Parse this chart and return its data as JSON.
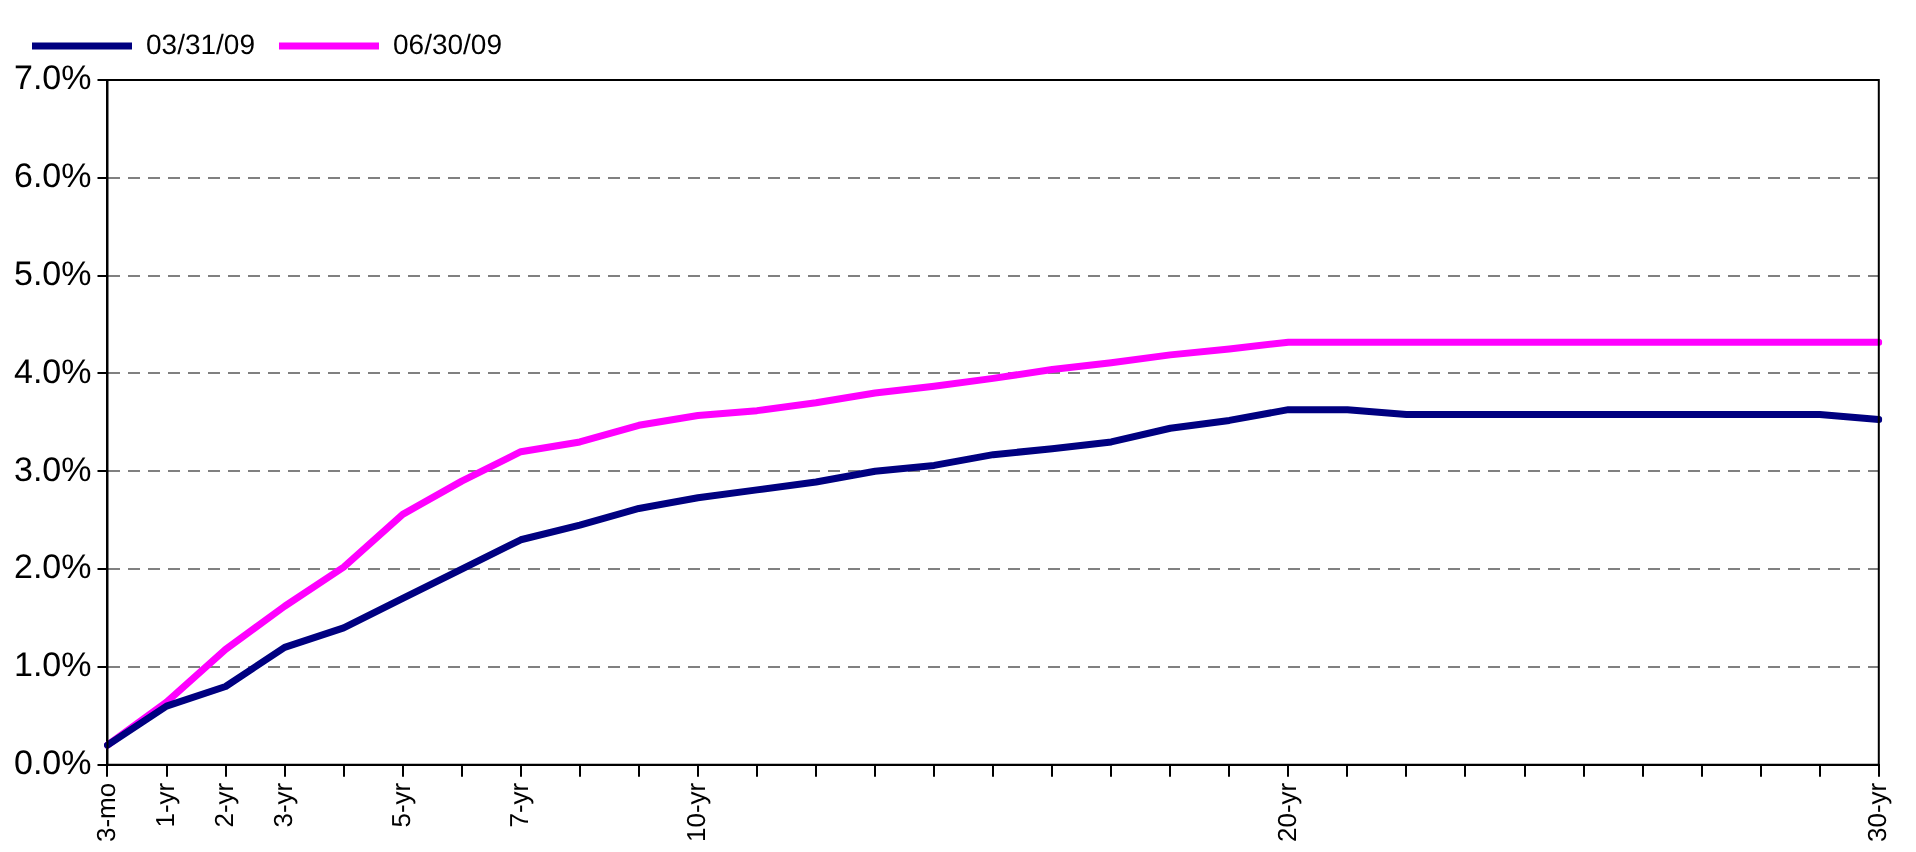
{
  "chart_data": {
    "type": "line",
    "legend": "top left",
    "grid": "y",
    "marker": "none",
    "line_style": "solid",
    "categories": [
      "3-mo",
      "1-yr",
      "2-yr",
      "3-yr",
      null,
      "5-yr",
      null,
      "7-yr",
      null,
      null,
      "10-yr",
      null,
      null,
      null,
      null,
      null,
      null,
      null,
      null,
      null,
      "20-yr",
      null,
      null,
      null,
      null,
      null,
      null,
      null,
      null,
      null,
      "30-yr"
    ],
    "ylim": [
      0,
      7
    ],
    "yticks": [
      {
        "value": 0,
        "label": "0.0%"
      },
      {
        "value": 1,
        "label": "1.0%"
      },
      {
        "value": 2,
        "label": "2.0%"
      },
      {
        "value": 3,
        "label": "3.0%"
      },
      {
        "value": 4,
        "label": "4.0%"
      },
      {
        "value": 5,
        "label": "5.0%"
      },
      {
        "value": 6,
        "label": "6.0%"
      },
      {
        "value": 7,
        "label": "7.0%"
      }
    ],
    "series": [
      {
        "name": "03/31/09",
        "color": "#000080",
        "values": [
          0.2,
          0.6,
          0.8,
          1.2,
          1.4,
          1.7,
          2.0,
          2.3,
          2.45,
          2.62,
          2.73,
          2.81,
          2.89,
          3.0,
          3.06,
          3.17,
          3.23,
          3.3,
          3.44,
          3.52,
          3.63,
          3.63,
          3.58,
          3.58,
          3.58,
          3.58,
          3.58,
          3.58,
          3.58,
          3.58,
          3.53
        ]
      },
      {
        "name": "06/30/09",
        "color": "#ff00ff",
        "values": [
          0.2,
          0.64,
          1.18,
          1.62,
          2.02,
          2.56,
          2.9,
          3.2,
          3.3,
          3.47,
          3.57,
          3.62,
          3.7,
          3.8,
          3.87,
          3.95,
          4.04,
          4.11,
          4.19,
          4.25,
          4.32,
          4.32,
          4.32,
          4.32,
          4.32,
          4.32,
          4.32,
          4.32,
          4.32,
          4.32,
          4.32
        ]
      }
    ]
  }
}
